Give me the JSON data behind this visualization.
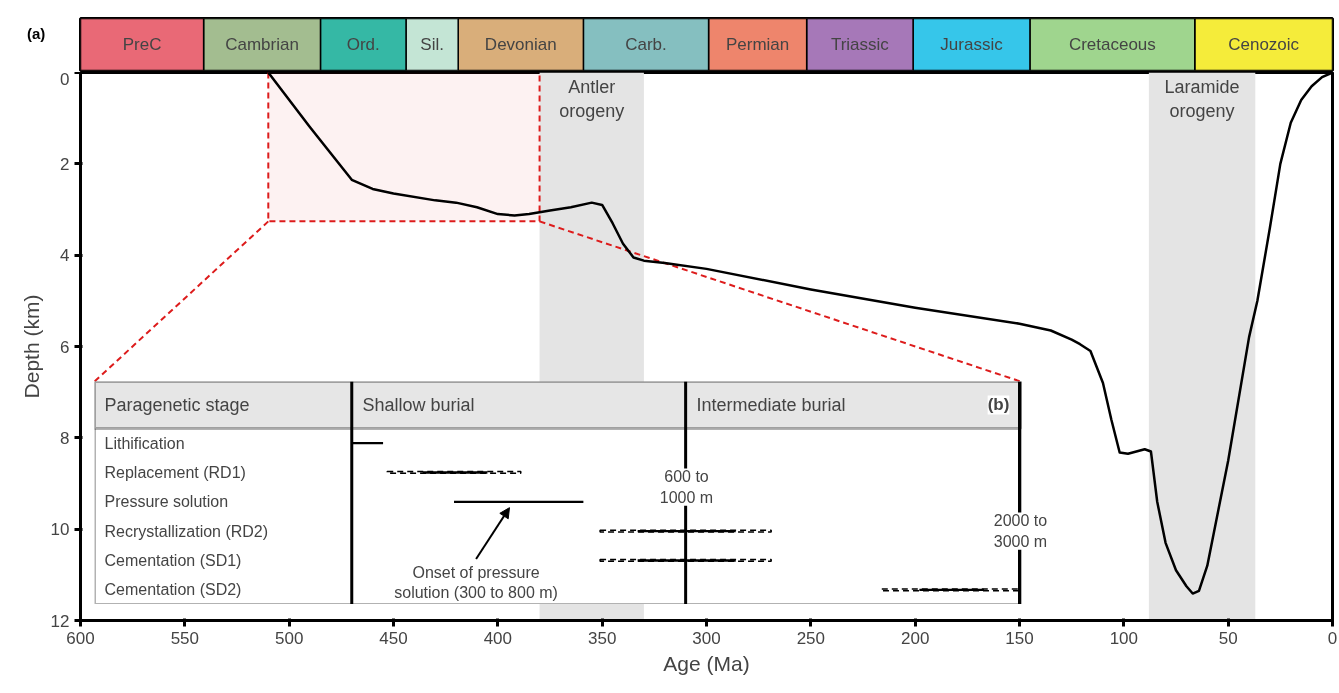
{
  "chart_data": [
    {
      "type": "bar",
      "orientation": "horizontal",
      "stacked": true,
      "categories": [
        null
      ],
      "xlim": [
        600,
        0
      ],
      "tick_labels": false,
      "annotations": [
        "(a)"
      ],
      "series": [
        {
          "name": "Cenozoic",
          "color": "#f5ec3a",
          "values": [
            66
          ]
        },
        {
          "name": "Cretaceous",
          "color": "#9fd58e",
          "values": [
            79
          ]
        },
        {
          "name": "Jurassic",
          "color": "#36c6ea",
          "values": [
            56
          ]
        },
        {
          "name": "Triassic",
          "color": "#a678b8",
          "values": [
            51
          ]
        },
        {
          "name": "Permian",
          "color": "#ee856c",
          "values": [
            47
          ]
        },
        {
          "name": "Carb.",
          "color": "#85bfc0",
          "values": [
            60
          ]
        },
        {
          "name": "Devonian",
          "color": "#d9ae7a",
          "values": [
            60
          ]
        },
        {
          "name": "Sil.",
          "color": "#c4e5d5",
          "values": [
            25
          ]
        },
        {
          "name": "Ord.",
          "color": "#35b8a5",
          "values": [
            41
          ]
        },
        {
          "name": "Cambrian",
          "color": "#a3bd90",
          "values": [
            56
          ]
        },
        {
          "name": "PreC",
          "color": "#e96976",
          "values": [
            59
          ]
        }
      ]
    },
    {
      "type": "line",
      "xlabel": "Age (Ma)",
      "ylabel": "Depth (km)",
      "xlim": [
        600,
        0
      ],
      "ylim": [
        12,
        0
      ],
      "xticks": [
        600,
        550,
        500,
        450,
        400,
        350,
        300,
        250,
        200,
        150,
        100,
        50,
        0
      ],
      "yticks": [
        0,
        2,
        4,
        6,
        8,
        10,
        12
      ],
      "marker": "none",
      "line_style": "solid",
      "x": [
        510,
        490,
        470,
        460,
        450,
        430,
        420,
        410,
        400,
        392,
        385,
        375,
        365,
        355,
        350,
        345,
        340,
        335,
        330,
        320,
        300,
        250,
        200,
        150,
        135,
        125,
        121,
        116,
        110,
        106,
        102,
        98,
        90,
        87,
        84,
        80,
        75,
        70,
        67,
        64,
        60,
        50,
        40,
        36,
        30,
        25,
        20,
        15,
        10,
        5,
        0
      ],
      "series": [
        {
          "color": "#000000",
          "values": [
            0,
            1.2,
            2.35,
            2.55,
            2.65,
            2.8,
            2.85,
            2.95,
            3.1,
            3.13,
            3.1,
            3.02,
            2.95,
            2.85,
            2.9,
            3.3,
            3.75,
            4.05,
            4.12,
            4.17,
            4.3,
            4.75,
            5.15,
            5.5,
            5.65,
            5.85,
            5.95,
            6.1,
            6.8,
            7.6,
            8.32,
            8.35,
            8.25,
            8.3,
            9.4,
            10.3,
            10.9,
            11.25,
            11.41,
            11.35,
            10.8,
            8.5,
            5.8,
            5.0,
            3.4,
            2.0,
            1.1,
            0.6,
            0.3,
            0.1,
            0
          ]
        }
      ],
      "bands": [
        {
          "axis": "x",
          "from": 380,
          "to": 330,
          "label": "Antler\norogeny",
          "color": "#e4e4e4"
        },
        {
          "axis": "x",
          "from": 88,
          "to": 37,
          "label": "Laramide\norogeny",
          "color": "#e4e4e4"
        },
        {
          "axis": "x",
          "from": 510,
          "to": 380,
          "color": "#dd1c1c"
        }
      ]
    },
    {
      "type": "bar",
      "orientation": "horizontal",
      "xlim": [
        600,
        0
      ],
      "tick_labels": false,
      "title": "(b)",
      "ylabel": "Paragenetic stage",
      "categories": [
        "Lithification",
        "Replacement (RD1)",
        "Pressure solution",
        "Recrystallization (RD2)",
        "Cementation (SD1)",
        "Cementation (SD2)"
      ],
      "series": [
        {
          "color": "#000000",
          "line_style": "dashed",
          "base": [
            null,
            389,
            null,
            269,
            269,
            150
          ],
          "values": [
            null,
            64,
            null,
            82,
            82,
            66
          ]
        },
        {
          "color": "#000000",
          "line_style": "solid",
          "base": [
            455,
            405,
            359,
            286,
            286,
            167
          ],
          "values": [
            15,
            31,
            62,
            47,
            47,
            31
          ]
        }
      ],
      "ref_lines": [
        {
          "axis": "x",
          "value": 470
        },
        {
          "axis": "x",
          "value": 310
        },
        {
          "axis": "x",
          "value": 150
        }
      ],
      "annotations": [
        "Shallow burial",
        "Intermediate burial",
        "600 to\n1000 m",
        "2000 to\n3000 m",
        "Onset of pressure\nsolution (300 to 800 m)"
      ]
    }
  ]
}
